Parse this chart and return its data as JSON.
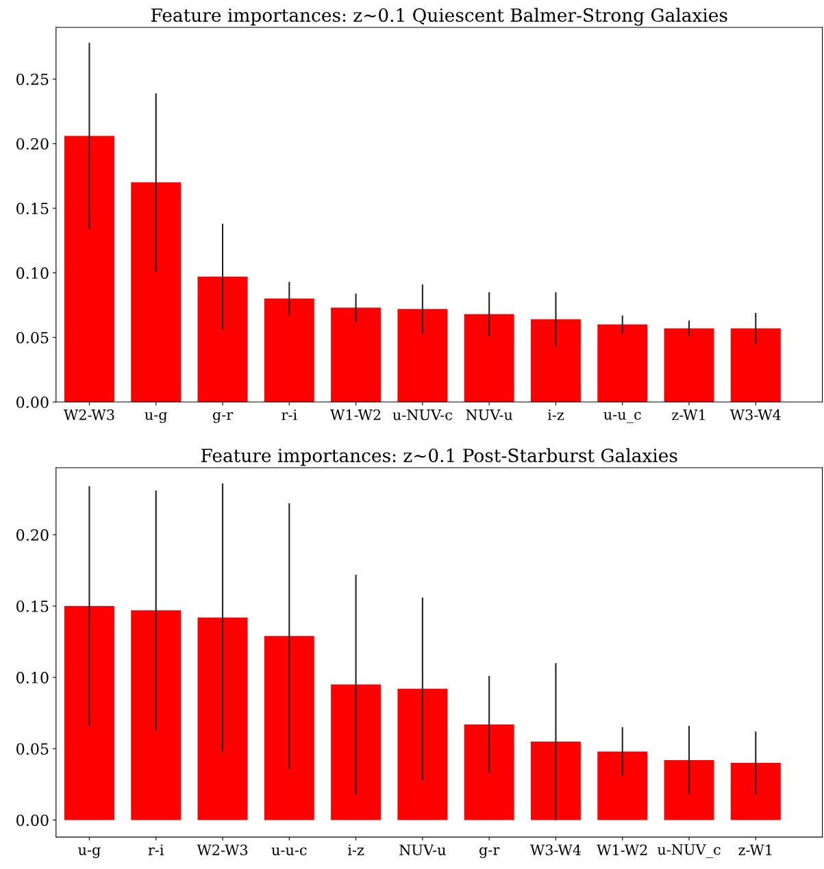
{
  "chart_data": [
    {
      "type": "bar",
      "title": "Feature importances: z~0.1 Quiescent Balmer-Strong Galaxies",
      "categories": [
        "W2-W3",
        "u-g",
        "g-r",
        "r-i",
        "W1-W2",
        "u-NUV-c",
        "NUV-u",
        "i-z",
        "u-u_c",
        "z-W1",
        "W3-W4"
      ],
      "values": [
        0.206,
        0.17,
        0.097,
        0.08,
        0.073,
        0.072,
        0.068,
        0.064,
        0.06,
        0.057,
        0.057
      ],
      "errors": [
        0.072,
        0.069,
        0.041,
        0.013,
        0.011,
        0.019,
        0.017,
        0.021,
        0.007,
        0.006,
        0.012
      ],
      "color": "#ff0000",
      "ylim": [
        0,
        0.29
      ],
      "yticks": [
        {
          "value": 0,
          "label": "0.00"
        },
        0.05,
        {
          "value": 0.1,
          "label": "0.10"
        },
        0.15,
        {
          "value": 0.2,
          "label": "0.20"
        },
        0.25
      ],
      "grid": false,
      "legend": false
    },
    {
      "type": "bar",
      "title": "Feature importances: z~0.1 Post-Starburst Galaxies",
      "categories": [
        "u-g",
        "r-i",
        "W2-W3",
        "u-u-c",
        "i-z",
        "NUV-u",
        "g-r",
        "W3-W4",
        "W1-W2",
        "u-NUV_c",
        "z-W1"
      ],
      "values": [
        0.15,
        0.147,
        0.142,
        0.129,
        0.095,
        0.092,
        0.067,
        0.055,
        0.048,
        0.042,
        0.04
      ],
      "errors": [
        0.084,
        0.084,
        0.094,
        0.093,
        0.077,
        0.064,
        0.034,
        0.055,
        0.017,
        0.024,
        0.022
      ],
      "color": "#ff0000",
      "ylim": [
        -0.012,
        0.247
      ],
      "yticks": [
        {
          "value": 0,
          "label": "0.00"
        },
        0.05,
        {
          "value": 0.1,
          "label": "0.10"
        },
        0.15,
        {
          "value": 0.2,
          "label": "0.20"
        }
      ],
      "grid": false,
      "legend": false
    }
  ]
}
